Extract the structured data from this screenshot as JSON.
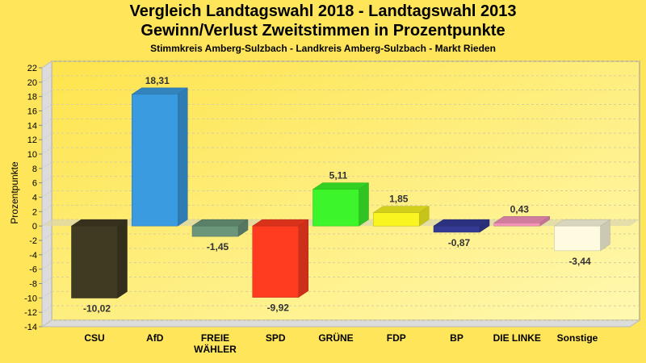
{
  "chart_data": {
    "type": "bar",
    "title": "Vergleich Landtagswahl 2018 - Landtagswahl 2013",
    "subtitle": "Gewinn/Verlust Zweitstimmen in Prozentpunkte",
    "subtitle2": "Stimmkreis Amberg-Sulzbach - Landkreis Amberg-Sulzbach - Markt Rieden",
    "xlabel": "",
    "ylabel": "Prozentpunkte",
    "ylim": [
      -14,
      22
    ],
    "ytick_step": 2,
    "grid": true,
    "categories": [
      "CSU",
      "AfD",
      "FREIE WÄHLER",
      "SPD",
      "GRÜNE",
      "FDP",
      "BP",
      "DIE LINKE",
      "Sonstige"
    ],
    "category_lines": [
      [
        "CSU"
      ],
      [
        "AfD"
      ],
      [
        "FREIE",
        "WÄHLER"
      ],
      [
        "SPD"
      ],
      [
        "GRÜNE"
      ],
      [
        "FDP"
      ],
      [
        "BP"
      ],
      [
        "DIE LINKE"
      ],
      [
        "Sonstige"
      ]
    ],
    "values": [
      -10.02,
      18.31,
      -1.45,
      -9.92,
      5.11,
      1.85,
      -0.87,
      0.43,
      -3.44
    ],
    "value_labels": [
      "-10,02",
      "18,31",
      "-1,45",
      "-9,92",
      "5,11",
      "1,85",
      "-0,87",
      "0,43",
      "-3,44"
    ],
    "colors": [
      "#3f3a22",
      "#3a9be0",
      "#6b967a",
      "#ff3b20",
      "#3cf52a",
      "#f8f521",
      "#333a94",
      "#f592b8",
      "#fffbe0"
    ]
  }
}
